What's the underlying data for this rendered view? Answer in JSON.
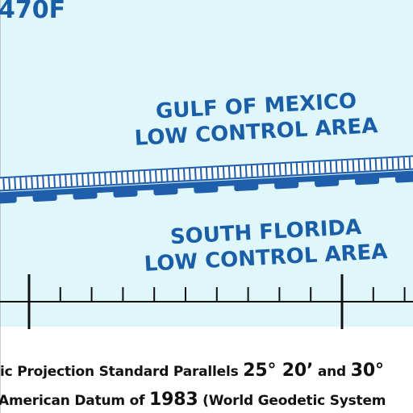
{
  "chart_label": "470F",
  "areas": [
    {
      "line1": "GULF OF MEXICO",
      "line2": "LOW CONTROL AREA"
    },
    {
      "line1": "SOUTH FLORIDA",
      "line2": "LOW CONTROL AREA"
    }
  ],
  "footer": {
    "line1_pre": "ic Projection Standard Parallels ",
    "line1_deg1": "25° 20’",
    "line1_mid": " and ",
    "line1_deg2": "30°",
    "line2_pre": "American Datum of ",
    "line2_year": "1983",
    "line2_post": " (World Geodetic System"
  },
  "colors": {
    "water": "#dff6fb",
    "text_blue": "#1b5ea8",
    "boundary": "#1f5eaa",
    "scale": "#111111"
  }
}
